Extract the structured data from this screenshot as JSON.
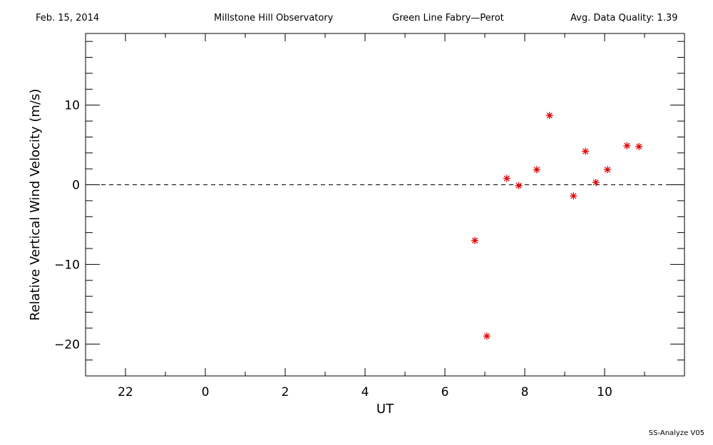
{
  "header": {
    "date": "Feb. 15, 2014",
    "observatory": "Millstone Hill Observatory",
    "instrument": "Green Line Fabry—Perot",
    "quality": "Avg. Data Quality: 1.39"
  },
  "footer": "SS-Analyze V05",
  "colors": {
    "points": "#e00000",
    "axes": "#000000"
  },
  "chart_data": {
    "type": "scatter",
    "title": "",
    "xlabel": "UT",
    "ylabel": "Relative Vertical Wind Velocity (m/s)",
    "xlim": [
      -3,
      12
    ],
    "ylim": [
      -24,
      19
    ],
    "x_tick_values": [
      22,
      0,
      2,
      4,
      6,
      8,
      10
    ],
    "x_tick_labels": [
      "22",
      "0",
      "2",
      "4",
      "6",
      "8",
      "10"
    ],
    "y_tick_values": [
      10,
      0,
      -10,
      -20
    ],
    "y_tick_labels": [
      "10",
      "0",
      "−10",
      "−20"
    ],
    "reference_line": {
      "y": 0,
      "style": "dashed"
    },
    "marker": "asterisk",
    "x": [
      6.75,
      7.05,
      7.55,
      7.85,
      8.3,
      8.62,
      9.22,
      9.52,
      9.78,
      10.07,
      10.56,
      10.86
    ],
    "y": [
      -7,
      -19,
      0.8,
      -0.1,
      1.9,
      8.7,
      -1.4,
      4.2,
      0.3,
      1.9,
      4.9,
      4.8
    ]
  }
}
